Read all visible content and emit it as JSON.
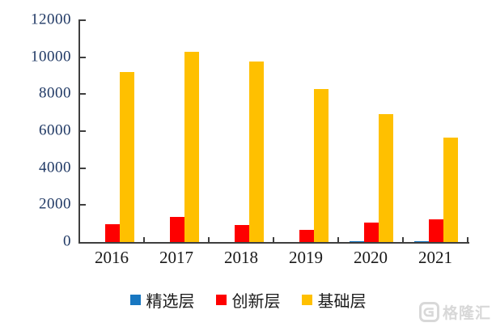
{
  "chart_data": {
    "type": "bar",
    "title": "",
    "xlabel": "",
    "ylabel": "",
    "categories": [
      "2016",
      "2017",
      "2018",
      "2019",
      "2020",
      "2021"
    ],
    "series": [
      {
        "name": "精选层",
        "color": "#1877c1",
        "values": [
          0,
          0,
          0,
          0,
          41,
          66
        ]
      },
      {
        "name": "创新层",
        "color": "#fe0000",
        "values": [
          953,
          1354,
          931,
          669,
          1070,
          1222
        ]
      },
      {
        "name": "基础层",
        "color": "#ffc000",
        "values": [
          9210,
          10276,
          9760,
          8284,
          6938,
          5644
        ]
      }
    ],
    "ylim": [
      0,
      12000
    ],
    "yticks": [
      0,
      2000,
      4000,
      6000,
      8000,
      10000,
      12000
    ],
    "ytick_labels": [
      "0",
      "2000",
      "4000",
      "6000",
      "8000",
      "10000",
      "12000"
    ],
    "grid": false,
    "legend_position": "bottom",
    "axis_color": "#3f3f3f",
    "ytick_label_color": "#1f3864",
    "xtick_label_color": "#1a1a1a"
  },
  "watermark": {
    "text": "格隆汇",
    "logo": "gelonghui-logo"
  }
}
